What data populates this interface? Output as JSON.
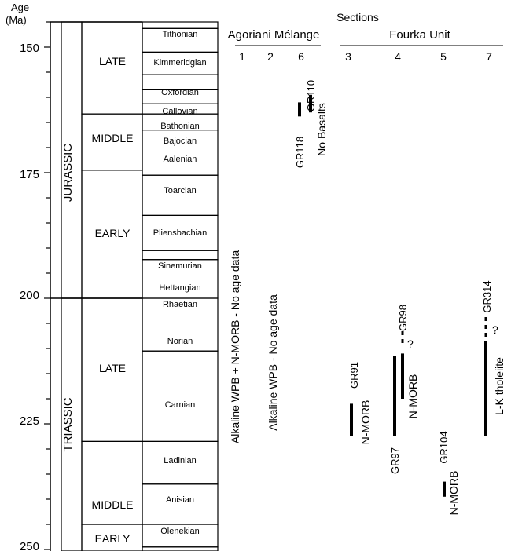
{
  "axis": {
    "title_line1": "Age",
    "title_line2": "(Ma)",
    "ticks": [
      "150",
      "175",
      "200",
      "225",
      "250"
    ]
  },
  "periods": [
    {
      "label": "JURASSIC",
      "top": 142,
      "bottom": 200
    },
    {
      "label": "TRIASSIC",
      "top": 200,
      "bottom": 252
    }
  ],
  "epochs": [
    {
      "label": "LATE",
      "top": 142,
      "bottom": 163.3
    },
    {
      "label": "MIDDLE",
      "top": 163.3,
      "bottom": 174.5
    },
    {
      "label": "EARLY",
      "top": 174.5,
      "bottom": 200
    },
    {
      "label": "LATE",
      "top": 200,
      "bottom": 228.5
    },
    {
      "label": "MIDDLE",
      "top": 228.5,
      "bottom": 245
    },
    {
      "label": "EARLY",
      "top": 245,
      "bottom": 252
    }
  ],
  "stages": [
    {
      "label": "Tithonian",
      "top": 142,
      "bottom": 146.3
    },
    {
      "label": "Kimmeridgian",
      "top": 146.3,
      "bottom": 151
    },
    {
      "label": "Oxfordian",
      "top": 151,
      "bottom": 155.5
    },
    {
      "label": "Callovian",
      "top": 155.5,
      "bottom": 158.5
    },
    {
      "label": "Bathonian",
      "top": 158.5,
      "bottom": 161.3
    },
    {
      "label": "Bajocian",
      "top": 161.3,
      "bottom": 163.3
    },
    {
      "label": "Aalenian",
      "top": 163.3,
      "bottom": 166.5
    },
    {
      "label": "Toarcian",
      "top": 166.5,
      "bottom": 175.5
    },
    {
      "label": "Pliensbachian",
      "top": 175.5,
      "bottom": 183.5
    },
    {
      "label": "Sinemurian",
      "top": 183.5,
      "bottom": 190.5
    },
    {
      "label": "Hettangian",
      "top": 190.5,
      "bottom": 192.3
    },
    {
      "label": "Rhaetian",
      "top": 192.3,
      "bottom": 200
    },
    {
      "label": "Norian",
      "top": 200,
      "bottom": 210.5
    },
    {
      "label": "Carnian",
      "top": 210.5,
      "bottom": 228.5
    },
    {
      "label": "Ladinian",
      "top": 228.5,
      "bottom": 237
    },
    {
      "label": "Anisian",
      "top": 237,
      "bottom": 245
    },
    {
      "label": "Olenekian",
      "top": 245,
      "bottom": 249.5
    },
    {
      "label": "",
      "top": 249.5,
      "bottom": 252
    }
  ],
  "header": {
    "title": "Sections",
    "group1": "Agoriani Mélange",
    "group2": "Fourka Unit",
    "section_numbers": [
      "1",
      "2",
      "6",
      "3",
      "4",
      "5",
      "7"
    ]
  },
  "notes": {
    "section1": "Alkaline WPB + N-MORB - No age data",
    "section2": "Alkaline WPB - No age data",
    "no_basalts": "No Basalts"
  },
  "samples": [
    {
      "id": "GR118",
      "section": "6",
      "from": 161,
      "to": 163.8
    },
    {
      "id": "GR110",
      "section": "6",
      "from": 159.5,
      "to": 163
    },
    {
      "id": "GR91",
      "section": "3",
      "from": 221,
      "to": 227.5
    },
    {
      "id": "GR97",
      "section": "4",
      "from": 211.5,
      "to": 227.5
    },
    {
      "id": "GR98",
      "section": "4",
      "from": 211,
      "to": 220
    },
    {
      "id": "GR104",
      "section": "5",
      "from": 236.5,
      "to": 239.5
    },
    {
      "id": "GR314",
      "section": "7",
      "from": 208.5,
      "to": 227.5
    }
  ],
  "sample_labels": {
    "gr118": "GR118",
    "gr110": "GR110",
    "gr91": "GR91",
    "gr97": "GR97",
    "gr98": "GR98",
    "gr104": "GR104",
    "gr314": "GR314"
  },
  "type_labels": {
    "gr91": "N-MORB",
    "gr98": "N-MORB",
    "gr104": "N-MORB",
    "gr314": "L-K tholeiite"
  },
  "uncertain_marks": {
    "gr98": "?",
    "gr314": "?"
  }
}
